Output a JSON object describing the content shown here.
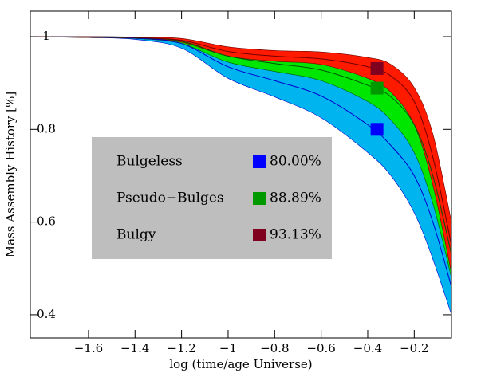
{
  "chart_data": {
    "type": "band-line",
    "x_label": "log (time/age Universe)",
    "y_label": "Mass Assembly History [%]",
    "xlim": [
      -1.85,
      -0.04
    ],
    "ylim": [
      0.35,
      1.055
    ],
    "xticks": [
      {
        "value": -1.6,
        "label": "−1.6"
      },
      {
        "value": -1.4,
        "label": "−1.4"
      },
      {
        "value": -1.2,
        "label": "−1.2"
      },
      {
        "value": -1,
        "label": "−1"
      },
      {
        "value": -0.8,
        "label": "−0.8"
      },
      {
        "value": -0.6,
        "label": "−0.6"
      },
      {
        "value": -0.4,
        "label": "−0.4"
      },
      {
        "value": -0.2,
        "label": "−0.2"
      }
    ],
    "yticks": [
      0.4,
      0.6,
      0.8,
      1
    ],
    "x": [
      -1.85,
      -1.6,
      -1.4,
      -1.2,
      -1.0,
      -0.8,
      -0.6,
      -0.4,
      -0.3,
      -0.2,
      -0.12,
      -0.04
    ],
    "series": [
      {
        "name": "Bulgeless",
        "color": "#0000cc",
        "band_color": "#00b4f0",
        "label_color": "#0000ff",
        "marker_color": "#0000ff",
        "values": [
          1,
          0.999,
          0.997,
          0.985,
          0.935,
          0.905,
          0.872,
          0.81,
          0.765,
          0.7,
          0.6,
          0.46
        ],
        "lower": [
          1,
          0.998,
          0.994,
          0.975,
          0.91,
          0.87,
          0.825,
          0.75,
          0.7,
          0.62,
          0.52,
          0.4
        ],
        "upper": [
          1,
          1,
          0.999,
          0.992,
          0.955,
          0.935,
          0.915,
          0.87,
          0.83,
          0.77,
          0.68,
          0.51
        ],
        "marker_x": -0.36,
        "marker_value": 0.8,
        "marker_label": "80.00%"
      },
      {
        "name": "Pseudo−Bulges",
        "color": "#005500",
        "band_color": "#00e600",
        "label_color": "#00a000",
        "marker_color": "#009900",
        "values": [
          1,
          0.999,
          0.998,
          0.99,
          0.958,
          0.942,
          0.928,
          0.895,
          0.87,
          0.81,
          0.7,
          0.53
        ],
        "lower": [
          1,
          0.998,
          0.996,
          0.985,
          0.945,
          0.925,
          0.905,
          0.86,
          0.82,
          0.75,
          0.64,
          0.48
        ],
        "upper": [
          1,
          1,
          0.999,
          0.995,
          0.968,
          0.957,
          0.948,
          0.925,
          0.9,
          0.85,
          0.75,
          0.58
        ],
        "marker_x": -0.36,
        "marker_value": 0.8889,
        "marker_label": "88.89%"
      },
      {
        "name": "Bulgy",
        "color": "#700000",
        "band_color": "#ff1a00",
        "label_color": "#8b0000",
        "marker_color": "#800020",
        "values": [
          1,
          0.999,
          0.998,
          0.992,
          0.968,
          0.958,
          0.952,
          0.935,
          0.915,
          0.86,
          0.74,
          0.55
        ],
        "lower": [
          1,
          0.998,
          0.997,
          0.988,
          0.958,
          0.947,
          0.94,
          0.91,
          0.88,
          0.81,
          0.68,
          0.49
        ],
        "upper": [
          1,
          1,
          0.999,
          0.996,
          0.978,
          0.97,
          0.967,
          0.955,
          0.94,
          0.89,
          0.79,
          0.6
        ],
        "marker_x": -0.36,
        "marker_value": 0.9313,
        "marker_label": "93.13%"
      }
    ],
    "legend_background": "#bebebe"
  }
}
